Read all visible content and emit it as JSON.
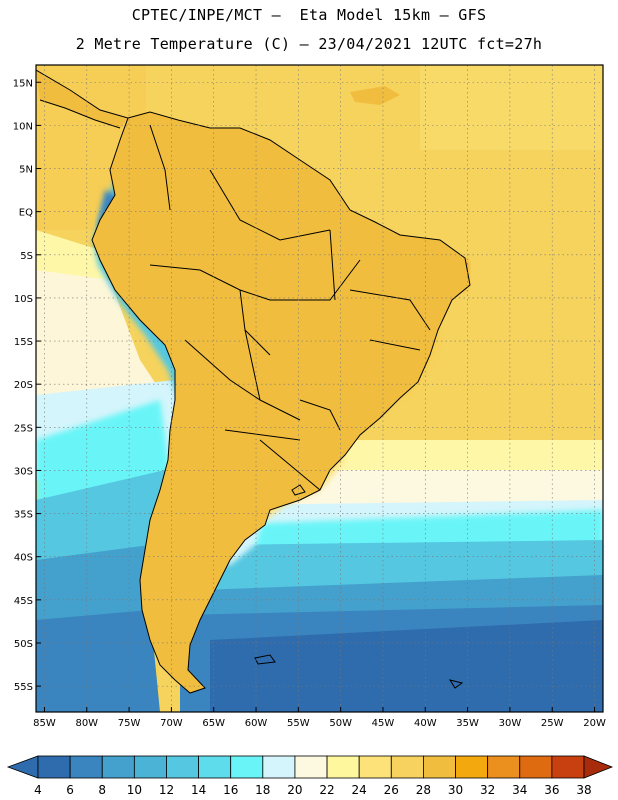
{
  "header": {
    "line1": "CPTEC/INPE/MCT –  Eta Model 15km – GFS",
    "line2": "2 Metre Temperature (C) – 23/04/2021 12UTC fct=27h"
  },
  "map": {
    "lat_labels": [
      "15N",
      "10N",
      "5N",
      "EQ",
      "5S",
      "10S",
      "15S",
      "20S",
      "25S",
      "30S",
      "35S",
      "40S",
      "45S",
      "50S",
      "55S"
    ],
    "lon_labels": [
      "85W",
      "80W",
      "75W",
      "70W",
      "65W",
      "60W",
      "55W",
      "50W",
      "45W",
      "40W",
      "35W",
      "30W",
      "25W",
      "20W"
    ],
    "lat_range": [
      -58,
      17
    ],
    "lon_range": [
      -86,
      -19
    ]
  },
  "colorbar": {
    "ticks": [
      "4",
      "6",
      "8",
      "10",
      "12",
      "14",
      "16",
      "18",
      "20",
      "22",
      "24",
      "26",
      "28",
      "30",
      "32",
      "34",
      "36",
      "38"
    ],
    "colors": [
      "#2f6cae",
      "#3a85bf",
      "#44a0cc",
      "#4bb3d6",
      "#55c7e0",
      "#5edceb",
      "#69f5f8",
      "#d4f5fb",
      "#fdf8e0",
      "#fef79e",
      "#fde27a",
      "#f8d25e",
      "#f0bd3e",
      "#f3a90e",
      "#eb8f1f",
      "#df6b10",
      "#c84010",
      "#a82c0c"
    ]
  },
  "colors": {
    "deep": "#2f6cae",
    "cool": "#44a0cc",
    "cyan": "#5edceb",
    "pale": "#d4f5fb",
    "warm": "#f8d25e",
    "hot": "#f0bd3e",
    "veryhot": "#eb8f1f"
  }
}
